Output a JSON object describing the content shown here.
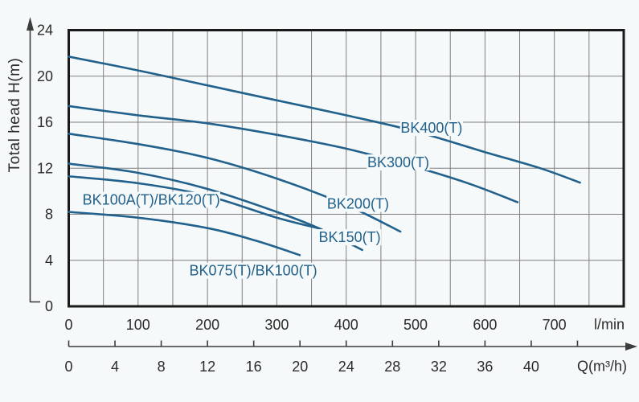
{
  "page": {
    "background": "#f5f9fa"
  },
  "colors": {
    "curve": "#21618c",
    "curve_label": "#21618c",
    "grid": "#7f7f7f",
    "border": "#1a1a1a",
    "axis_text": "#2b2b2b",
    "axis_line": "#3d3d3d"
  },
  "chart_data": {
    "type": "line",
    "title": "",
    "ylabel": "Total head  H(m)",
    "ylim": [
      0,
      24
    ],
    "y_ticks": [
      24,
      20,
      16,
      12,
      8,
      4,
      0
    ],
    "grid": {
      "vertical_every_lmin": 50,
      "horizontal_every_m": 4,
      "grid_on": true
    },
    "x_axis_primary": {
      "unit": "l/min",
      "max": 800,
      "ticks": [
        0,
        100,
        200,
        300,
        400,
        500,
        600,
        700
      ]
    },
    "x_axis_secondary": {
      "unit": "Q(m³/h)",
      "lmin_per_unit": 16.6667,
      "labeled_ticks": [
        0,
        4,
        8,
        12,
        16,
        20,
        24,
        28,
        32,
        36,
        40
      ],
      "extra_unlabeled_tick": 44
    },
    "series": [
      {
        "name": "BK400(T)",
        "points": [
          [
            0,
            21.7
          ],
          [
            100,
            20.5
          ],
          [
            200,
            19.2
          ],
          [
            300,
            17.9
          ],
          [
            400,
            16.6
          ],
          [
            500,
            15.2
          ],
          [
            600,
            13.4
          ],
          [
            680,
            12.0
          ],
          [
            737,
            10.75
          ]
        ],
        "label": {
          "x": 523,
          "y": 15.5
        }
      },
      {
        "name": "BK300(T)",
        "points": [
          [
            0,
            17.4
          ],
          [
            100,
            16.6
          ],
          [
            200,
            15.9
          ],
          [
            300,
            14.9
          ],
          [
            400,
            13.7
          ],
          [
            500,
            12.1
          ],
          [
            580,
            10.6
          ],
          [
            647,
            9.05
          ]
        ],
        "label": {
          "x": 475,
          "y": 12.5
        }
      },
      {
        "name": "BK200(T)",
        "points": [
          [
            0,
            15.0
          ],
          [
            100,
            14.1
          ],
          [
            200,
            12.9
          ],
          [
            300,
            11.1
          ],
          [
            400,
            8.8
          ],
          [
            478,
            6.5
          ]
        ],
        "label": {
          "x": 417,
          "y": 8.9
        }
      },
      {
        "name": "BK150(T)",
        "points": [
          [
            0,
            12.4
          ],
          [
            100,
            11.6
          ],
          [
            200,
            10.2
          ],
          [
            300,
            8.2
          ],
          [
            360,
            6.8
          ],
          [
            423,
            4.9
          ]
        ],
        "label": {
          "x": 405,
          "y": 6.0
        }
      },
      {
        "name": "BK100A(T)/BK120(T)",
        "points": [
          [
            0,
            11.3
          ],
          [
            100,
            10.7
          ],
          [
            200,
            9.6
          ],
          [
            300,
            7.7
          ],
          [
            362,
            6.75
          ]
        ],
        "label": {
          "x": 119,
          "y": 9.25
        }
      },
      {
        "name": "BK075(T)/BK100(T)",
        "points": [
          [
            0,
            8.2
          ],
          [
            100,
            7.7
          ],
          [
            200,
            6.8
          ],
          [
            270,
            5.7
          ],
          [
            333,
            4.45
          ]
        ],
        "label": {
          "x": 266,
          "y": 3.1
        }
      }
    ]
  }
}
